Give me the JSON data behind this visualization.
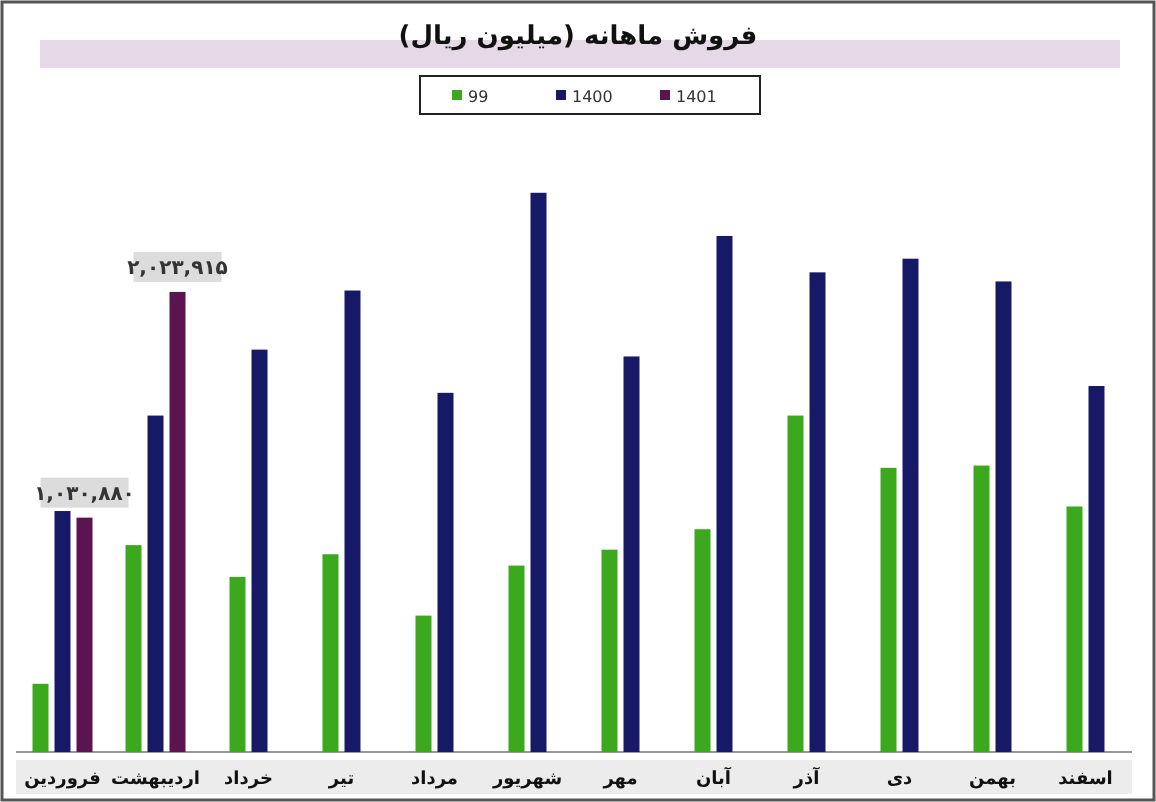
{
  "chart_data": {
    "type": "bar",
    "title": "فروش ماهانه (میلیون ریال)",
    "categories": [
      "فروردین",
      "اردیبهشت",
      "خرداد",
      "تیر",
      "مرداد",
      "شهریور",
      "مهر",
      "آبان",
      "آذر",
      "دی",
      "بهمن",
      "اسفند"
    ],
    "series": [
      {
        "name": "99",
        "color": "#3ca81e",
        "values": [
          300000,
          910000,
          770000,
          870000,
          600000,
          820000,
          890000,
          980000,
          1480000,
          1250000,
          1260000,
          1080000
        ]
      },
      {
        "name": "1400",
        "color": "#161a66",
        "values": [
          1060000,
          1480000,
          1770000,
          2030000,
          1580000,
          2460000,
          1740000,
          2270000,
          2110000,
          2170000,
          2070000,
          1610000
        ]
      },
      {
        "name": "1401",
        "color": "#5c1450",
        "values": [
          1030880,
          2023915,
          null,
          null,
          null,
          null,
          null,
          null,
          null,
          null,
          null,
          null
        ],
        "value_labels": [
          "۱,۰۳۰,۸۸۰",
          "۲,۰۲۳,۹۱۵",
          null,
          null,
          null,
          null,
          null,
          null,
          null,
          null,
          null,
          null
        ]
      }
    ],
    "legend": "top"
  }
}
